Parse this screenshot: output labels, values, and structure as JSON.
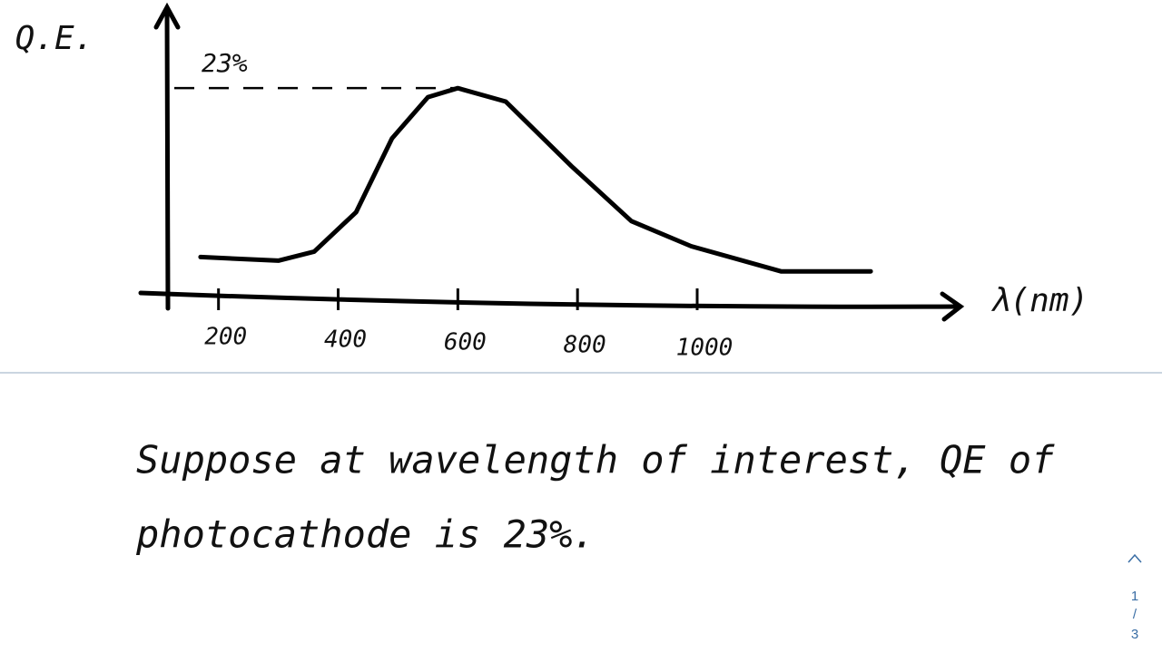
{
  "chart_data": {
    "type": "line",
    "y_label": "Q.E.",
    "x_label": "λ(nm)",
    "x": [
      170,
      300,
      360,
      430,
      490,
      550,
      600,
      680,
      790,
      890,
      990,
      1140,
      1290
    ],
    "values": [
      4.2,
      3.8,
      4.8,
      9.2,
      17.4,
      22,
      23,
      21.5,
      14.3,
      8.2,
      5.4,
      2.6,
      2.6
    ],
    "color": "#000000",
    "xlim": [
      70,
      1440
    ],
    "xticks": [
      200,
      400,
      600,
      800,
      1000
    ],
    "ylim": [
      0,
      32
    ],
    "yticks": [
      {
        "value": 23,
        "label": "23%"
      }
    ],
    "grid": true
  },
  "note": {
    "lines": [
      "Suppose at wavelength of interest, QE of",
      "photocathode is 23%."
    ]
  },
  "pager": {
    "current": 1,
    "separator": "/",
    "total": 3
  }
}
